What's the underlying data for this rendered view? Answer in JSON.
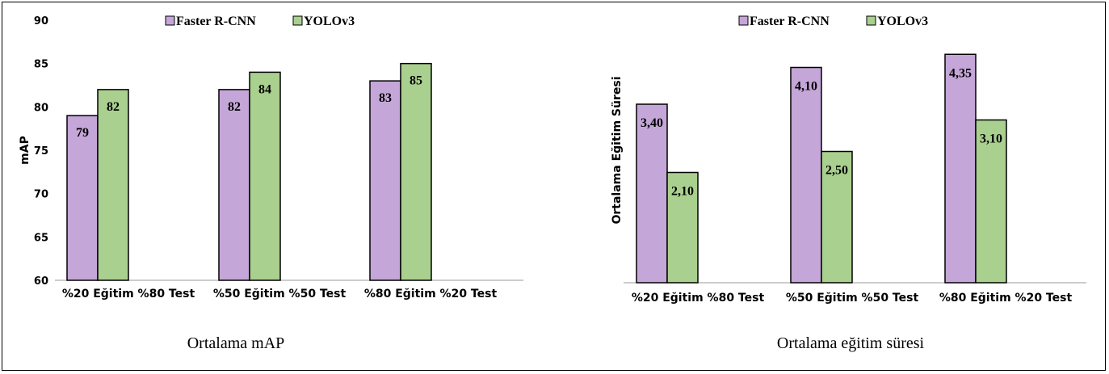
{
  "colors": {
    "faster_rcnn": "#c5a6d8",
    "yolov3": "#a9d08e",
    "axis": "#999999",
    "bar_stroke": "#000000"
  },
  "legend": [
    "Faster R-CNN",
    "YOLOv3"
  ],
  "captions": {
    "left": "Ortalama mAP",
    "right": "Ortalama eğitim süresi"
  },
  "chart_data": [
    {
      "type": "bar",
      "title": "",
      "xlabel": "",
      "ylabel": "mAP",
      "ylim": [
        60,
        90
      ],
      "yticks": [
        60,
        65,
        70,
        75,
        80,
        85,
        90
      ],
      "grid": false,
      "legend_position": "top",
      "categories": [
        "%20 Eğitim %80 Test",
        "%50 Eğitim %50 Test",
        "%80 Eğitim %20 Test"
      ],
      "series": [
        {
          "name": "Faster R-CNN",
          "values": [
            79,
            82,
            83
          ],
          "labels": [
            "79",
            "82",
            "83"
          ]
        },
        {
          "name": "YOLOv3",
          "values": [
            82,
            84,
            85
          ],
          "labels": [
            "82",
            "84",
            "85"
          ]
        }
      ]
    },
    {
      "type": "bar",
      "title": "",
      "xlabel": "",
      "ylabel": "Ortalama Eğitim Süresi",
      "ylim": [
        0,
        5
      ],
      "grid": false,
      "legend_position": "top",
      "categories": [
        "%20 Eğitim %80 Test",
        "%50 Eğitim %50 Test",
        "%80 Eğitim %20 Test"
      ],
      "series": [
        {
          "name": "Faster R-CNN",
          "values": [
            3.4,
            4.1,
            4.35
          ],
          "labels": [
            "3,40",
            "4,10",
            "4,35"
          ]
        },
        {
          "name": "YOLOv3",
          "values": [
            2.1,
            2.5,
            3.1
          ],
          "labels": [
            "2,10",
            "2,50",
            "3,10"
          ]
        }
      ]
    }
  ]
}
